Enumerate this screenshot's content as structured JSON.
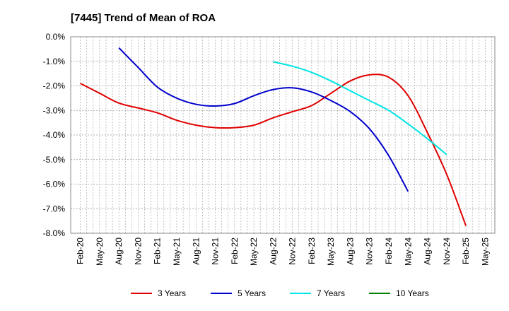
{
  "chart_data": {
    "type": "line",
    "title": "[7445]  Trend of Mean of ROA",
    "xlabel": "",
    "ylabel": "",
    "ylim": [
      -8.0,
      0.0
    ],
    "grid": true,
    "legend_position": "bottom",
    "y_ticks": [
      "0.0%",
      "-1.0%",
      "-2.0%",
      "-3.0%",
      "-4.0%",
      "-5.0%",
      "-6.0%",
      "-7.0%",
      "-8.0%"
    ],
    "y_tick_values": [
      0,
      -1,
      -2,
      -3,
      -4,
      -5,
      -6,
      -7,
      -8
    ],
    "x_ticks": [
      "Feb-20",
      "May-20",
      "Aug-20",
      "Nov-20",
      "Feb-21",
      "May-21",
      "Aug-21",
      "Nov-21",
      "Feb-22",
      "May-22",
      "Aug-22",
      "Nov-22",
      "Feb-23",
      "May-23",
      "Aug-23",
      "Nov-23",
      "Feb-24",
      "May-24",
      "Aug-24",
      "Nov-24",
      "Feb-25",
      "May-25"
    ],
    "x_count": 22,
    "series": [
      {
        "name": "3 Years",
        "color": "#e00000",
        "start_index": 0,
        "values": [
          -1.9,
          -2.3,
          -2.7,
          -2.9,
          -3.1,
          -3.4,
          -3.6,
          -3.7,
          -3.7,
          -3.6,
          -3.3,
          -3.05,
          -2.8,
          -2.3,
          -1.8,
          -1.55,
          -1.65,
          -2.4,
          -3.9,
          -5.6,
          -7.7
        ]
      },
      {
        "name": "5 Years",
        "color": "#0000cc",
        "start_index": 2,
        "values": [
          -0.45,
          -1.25,
          -2.05,
          -2.5,
          -2.75,
          -2.82,
          -2.72,
          -2.4,
          -2.15,
          -2.08,
          -2.25,
          -2.6,
          -3.05,
          -3.75,
          -4.85,
          -6.3
        ]
      },
      {
        "name": "7 Years",
        "color": "#00e5e5",
        "start_index": 10,
        "values": [
          -1.02,
          -1.2,
          -1.45,
          -1.8,
          -2.2,
          -2.6,
          -3.0,
          -3.55,
          -4.15,
          -4.8
        ]
      },
      {
        "name": "10 Years",
        "color": "#008000",
        "start_index": 0,
        "values": []
      }
    ]
  }
}
